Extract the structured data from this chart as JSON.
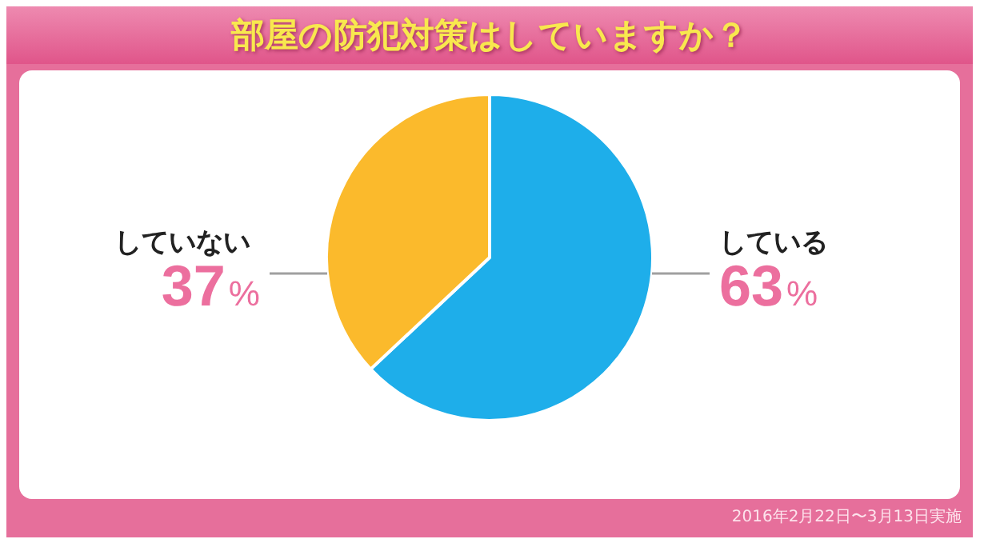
{
  "chart_data": {
    "type": "pie",
    "title": "部屋の防犯対策はしていますか？",
    "categories": [
      "している",
      "していない"
    ],
    "values": [
      63,
      37
    ],
    "colors": [
      "#1eaeea",
      "#fbba2c"
    ],
    "value_labels": [
      "63%",
      "37%"
    ],
    "annotations": [
      "2016年2月22日〜3月13日実施"
    ],
    "legend": false
  }
}
